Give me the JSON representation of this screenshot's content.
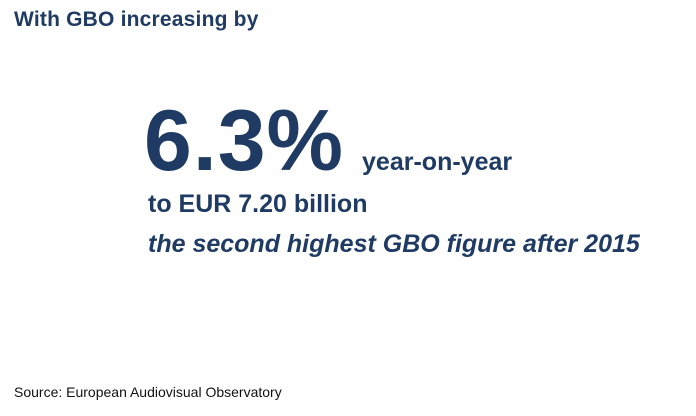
{
  "header": {
    "title": "With GBO increasing by"
  },
  "stat": {
    "value": "6.3%",
    "suffix": "year-on-year",
    "line_amount": "to EUR 7.20 billion",
    "line_note": "the second highest GBO figure after 2015"
  },
  "footer": {
    "source": "Source: European Audiovisual Observatory"
  },
  "colors": {
    "text_primary": "#1f3b63",
    "source_text": "#111111",
    "background": "#ffffff"
  }
}
